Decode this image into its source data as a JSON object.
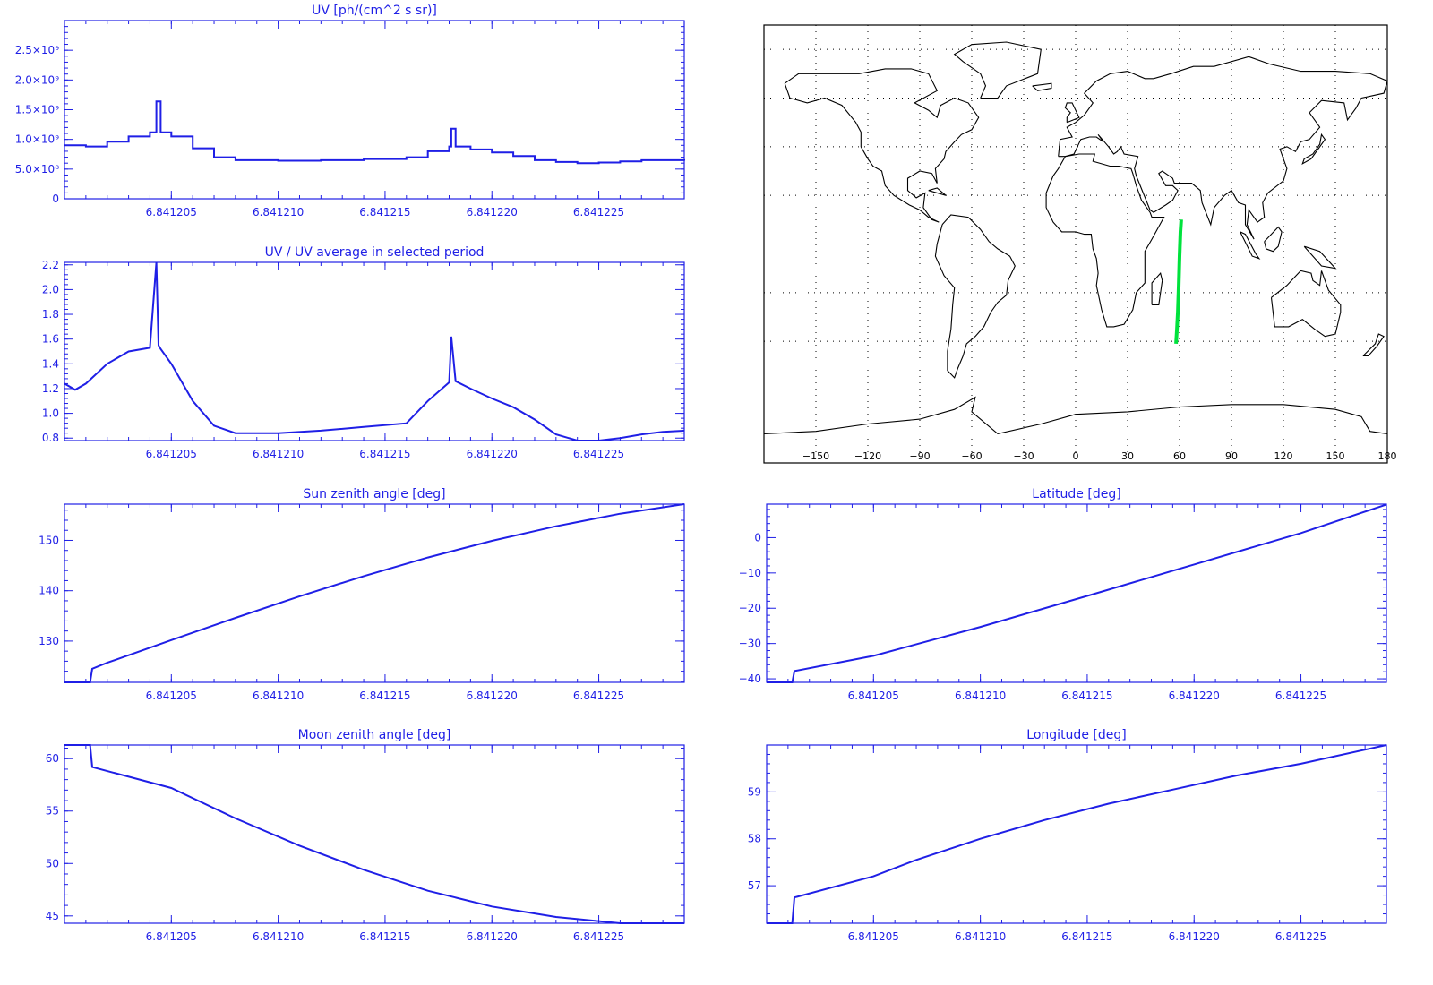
{
  "colors": {
    "axis": "#1f1fe6",
    "line": "#1f1fe6",
    "track": "#00e23c",
    "coast": "#000000"
  },
  "map": {
    "xticks": [
      -150,
      -120,
      -90,
      -60,
      -30,
      0,
      30,
      60,
      90,
      120,
      150,
      180
    ],
    "xlim": [
      -180,
      180
    ],
    "ylim": [
      -90,
      90
    ],
    "grid_lon": [
      -150,
      -120,
      -90,
      -60,
      -30,
      0,
      30,
      60,
      90,
      120,
      150
    ],
    "grid_lat": [
      -60,
      -40,
      -20,
      0,
      20,
      40,
      60,
      80
    ],
    "grid": true,
    "track": [
      [
        58,
        -41
      ],
      [
        58.5,
        -35
      ],
      [
        59,
        -28
      ],
      [
        59.5,
        -18
      ],
      [
        60,
        -5
      ],
      [
        60.5,
        5
      ],
      [
        61,
        10
      ]
    ]
  },
  "chart_data": [
    {
      "type": "line",
      "title": "UV [ph/(cm^2 s sr)]",
      "xlim": [
        6.8412,
        6.841229
      ],
      "ylim": [
        0,
        3000000000
      ],
      "xticks": [
        6.841205,
        6.84121,
        6.841215,
        6.84122,
        6.841225
      ],
      "yticks": [
        0,
        500000000,
        1000000000,
        1500000000,
        2000000000,
        2500000000
      ],
      "ytick_labels": [
        "0",
        "5.0×10⁸",
        "1.0×10⁹",
        "1.5×10⁹",
        "2.0×10⁹",
        "2.5×10⁹"
      ],
      "step": true,
      "x": [
        6.8412,
        6.841201,
        6.841202,
        6.841203,
        6.841204,
        6.8412043,
        6.8412045,
        6.841205,
        6.841206,
        6.841207,
        6.841208,
        6.84121,
        6.841212,
        6.841214,
        6.841216,
        6.841217,
        6.841218,
        6.8412181,
        6.8412183,
        6.841219,
        6.84122,
        6.841221,
        6.841222,
        6.841223,
        6.841224,
        6.841225,
        6.841226,
        6.841227,
        6.841228,
        6.841229
      ],
      "y": [
        900000000,
        880000000,
        960000000,
        1050000000,
        1120000000,
        1640000000,
        1120000000,
        1050000000,
        850000000,
        700000000,
        650000000,
        640000000,
        650000000,
        670000000,
        700000000,
        800000000,
        880000000,
        1180000000,
        880000000,
        830000000,
        780000000,
        720000000,
        650000000,
        620000000,
        600000000,
        610000000,
        630000000,
        650000000,
        650000000,
        640000000
      ]
    },
    {
      "type": "line",
      "title": "UV / UV average in selected period",
      "xlim": [
        6.8412,
        6.841229
      ],
      "ylim": [
        0.78,
        2.22
      ],
      "xticks": [
        6.841205,
        6.84121,
        6.841215,
        6.84122,
        6.841225
      ],
      "yticks": [
        0.8,
        1.0,
        1.2,
        1.4,
        1.6,
        1.8,
        2.0,
        2.2
      ],
      "ytick_labels": [
        "0.8",
        "1.0",
        "1.2",
        "1.4",
        "1.6",
        "1.8",
        "2.0",
        "2.2"
      ],
      "x": [
        6.8412,
        6.8412005,
        6.841201,
        6.841202,
        6.841203,
        6.841204,
        6.8412043,
        6.8412044,
        6.8412045,
        6.841205,
        6.841206,
        6.841207,
        6.841208,
        6.84121,
        6.841212,
        6.841214,
        6.841216,
        6.841217,
        6.841218,
        6.8412181,
        6.8412183,
        6.841219,
        6.84122,
        6.841221,
        6.841222,
        6.841223,
        6.841224,
        6.841225,
        6.841226,
        6.841227,
        6.841228,
        6.841229
      ],
      "y": [
        1.24,
        1.19,
        1.24,
        1.4,
        1.5,
        1.53,
        2.22,
        1.55,
        1.52,
        1.4,
        1.1,
        0.9,
        0.84,
        0.84,
        0.86,
        0.89,
        0.92,
        1.1,
        1.25,
        1.62,
        1.26,
        1.2,
        1.12,
        1.05,
        0.95,
        0.83,
        0.78,
        0.78,
        0.8,
        0.83,
        0.85,
        0.86
      ]
    },
    {
      "type": "line",
      "title": "Sun zenith angle [deg]",
      "xlim": [
        6.8412,
        6.841229
      ],
      "ylim": [
        121.8,
        157.2
      ],
      "xticks": [
        6.841205,
        6.84121,
        6.841215,
        6.84122,
        6.841225
      ],
      "yticks": [
        130,
        140,
        150
      ],
      "ytick_labels": [
        "130",
        "140",
        "150"
      ],
      "x": [
        6.8412,
        6.8412012,
        6.8412013,
        6.841202,
        6.841205,
        6.841208,
        6.841211,
        6.841214,
        6.841217,
        6.84122,
        6.841223,
        6.841226,
        6.841229
      ],
      "y": [
        121.8,
        121.8,
        124.5,
        125.7,
        130.2,
        134.6,
        138.9,
        142.9,
        146.6,
        149.9,
        152.8,
        155.3,
        157.2
      ]
    },
    {
      "type": "line",
      "title": "Latitude [deg]",
      "xlim": [
        6.8412,
        6.841229
      ],
      "ylim": [
        -41,
        9.5
      ],
      "xticks": [
        6.841205,
        6.84121,
        6.841215,
        6.84122,
        6.841225
      ],
      "yticks": [
        -40,
        -30,
        -20,
        -10,
        0
      ],
      "ytick_labels": [
        "−40",
        "−30",
        "−20",
        "−10",
        "0"
      ],
      "x": [
        6.8412,
        6.8412012,
        6.8412013,
        6.841205,
        6.84121,
        6.841215,
        6.84122,
        6.841225,
        6.841229
      ],
      "y": [
        -41,
        -41,
        -37.8,
        -33.5,
        -25.3,
        -16.5,
        -7.6,
        1.3,
        9.4
      ]
    },
    {
      "type": "line",
      "title": "Moon zenith angle [deg]",
      "xlim": [
        6.8412,
        6.841229
      ],
      "ylim": [
        44.3,
        61.3
      ],
      "xticks": [
        6.841205,
        6.84121,
        6.841215,
        6.84122,
        6.841225
      ],
      "yticks": [
        45,
        50,
        55,
        60
      ],
      "ytick_labels": [
        "45",
        "50",
        "55",
        "60"
      ],
      "x": [
        6.8412,
        6.8412012,
        6.8412013,
        6.841205,
        6.841208,
        6.841211,
        6.841214,
        6.841217,
        6.84122,
        6.841223,
        6.841226,
        6.841229
      ],
      "y": [
        61.3,
        61.3,
        59.2,
        57.2,
        54.3,
        51.7,
        49.4,
        47.4,
        45.9,
        44.9,
        44.3,
        44.3
      ]
    },
    {
      "type": "line",
      "title": "Longitude [deg]",
      "xlim": [
        6.8412,
        6.841229
      ],
      "ylim": [
        56.2,
        60.0
      ],
      "xticks": [
        6.841205,
        6.84121,
        6.841215,
        6.84122,
        6.841225
      ],
      "yticks": [
        57,
        58,
        59
      ],
      "ytick_labels": [
        "57",
        "58",
        "59"
      ],
      "x": [
        6.8412,
        6.8412012,
        6.8412013,
        6.841205,
        6.841207,
        6.84121,
        6.841213,
        6.841216,
        6.841219,
        6.841222,
        6.841225,
        6.841229
      ],
      "y": [
        56.2,
        56.2,
        56.75,
        57.2,
        57.55,
        58.0,
        58.4,
        58.75,
        59.05,
        59.35,
        59.6,
        60.0
      ]
    }
  ]
}
